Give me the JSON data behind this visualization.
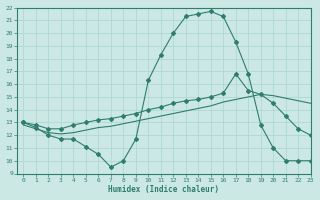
{
  "line1_x": [
    0,
    1,
    2,
    3,
    4,
    5,
    6,
    7,
    8,
    9,
    10,
    11,
    12,
    13,
    14,
    15,
    16,
    17,
    18,
    19,
    20,
    21,
    22,
    23
  ],
  "line1_y": [
    13,
    12.6,
    12.0,
    11.7,
    11.7,
    11.1,
    10.5,
    9.5,
    10.0,
    11.7,
    16.3,
    18.3,
    20.0,
    21.3,
    21.5,
    21.7,
    21.3,
    19.3,
    16.8,
    12.8,
    11.0,
    10.0,
    10.0,
    10.0
  ],
  "line2_x": [
    0,
    1,
    2,
    3,
    4,
    5,
    6,
    7,
    8,
    9,
    10,
    11,
    12,
    13,
    14,
    15,
    16,
    17,
    18,
    19,
    20,
    21,
    22,
    23
  ],
  "line2_y": [
    13.0,
    12.8,
    12.5,
    12.5,
    12.8,
    13.0,
    13.2,
    13.3,
    13.5,
    13.7,
    14.0,
    14.2,
    14.5,
    14.7,
    14.8,
    15.0,
    15.3,
    16.8,
    15.5,
    15.2,
    14.5,
    13.5,
    12.5,
    12.0
  ],
  "line3_x": [
    0,
    1,
    2,
    3,
    4,
    5,
    6,
    7,
    8,
    9,
    10,
    11,
    12,
    13,
    14,
    15,
    16,
    17,
    18,
    19,
    20,
    21,
    22,
    23
  ],
  "line3_y": [
    12.8,
    12.5,
    12.2,
    12.1,
    12.2,
    12.4,
    12.6,
    12.7,
    12.9,
    13.1,
    13.3,
    13.5,
    13.7,
    13.9,
    14.1,
    14.3,
    14.6,
    14.8,
    15.0,
    15.2,
    15.1,
    14.9,
    14.7,
    14.5
  ],
  "color": "#2e7d6e",
  "bg_color": "#cce8e4",
  "grid_color": "#b0d8d3",
  "xlabel": "Humidex (Indice chaleur)",
  "ylim": [
    9,
    22
  ],
  "xlim": [
    -0.5,
    23
  ],
  "yticks": [
    9,
    10,
    11,
    12,
    13,
    14,
    15,
    16,
    17,
    18,
    19,
    20,
    21,
    22
  ],
  "xticks": [
    0,
    1,
    2,
    3,
    4,
    5,
    6,
    7,
    8,
    9,
    10,
    11,
    12,
    13,
    14,
    15,
    16,
    17,
    18,
    19,
    20,
    21,
    22,
    23
  ]
}
